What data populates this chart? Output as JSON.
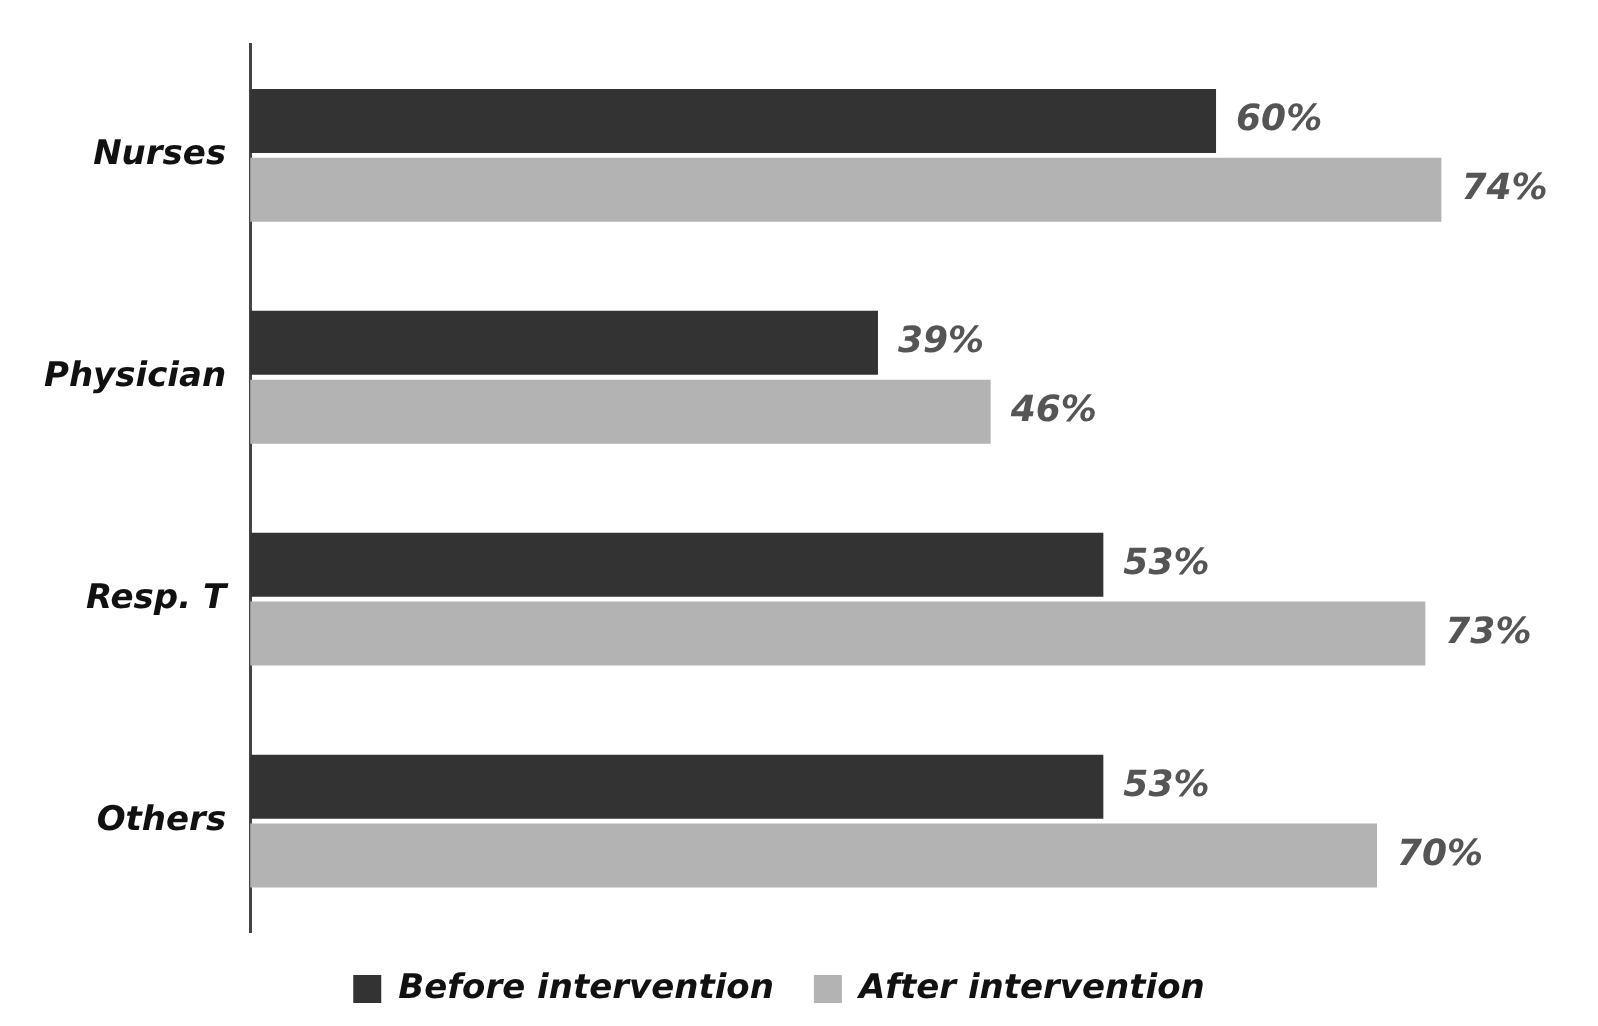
{
  "chart_data": {
    "type": "bar",
    "orientation": "horizontal",
    "categories": [
      "Nurses",
      "Physician",
      "Resp. T",
      "Others"
    ],
    "series": [
      {
        "name": "Before intervention",
        "color": "#333333",
        "values": [
          60,
          39,
          53,
          53
        ],
        "value_labels": [
          "60%",
          "39%",
          "53%",
          "53%"
        ]
      },
      {
        "name": "After intervention",
        "color": "#b3b3b3",
        "values": [
          74,
          46,
          73,
          70
        ],
        "value_labels": [
          "74%",
          "46%",
          "73%",
          "70%"
        ]
      }
    ],
    "legend": "bottom",
    "tick_labels": "y"
  }
}
